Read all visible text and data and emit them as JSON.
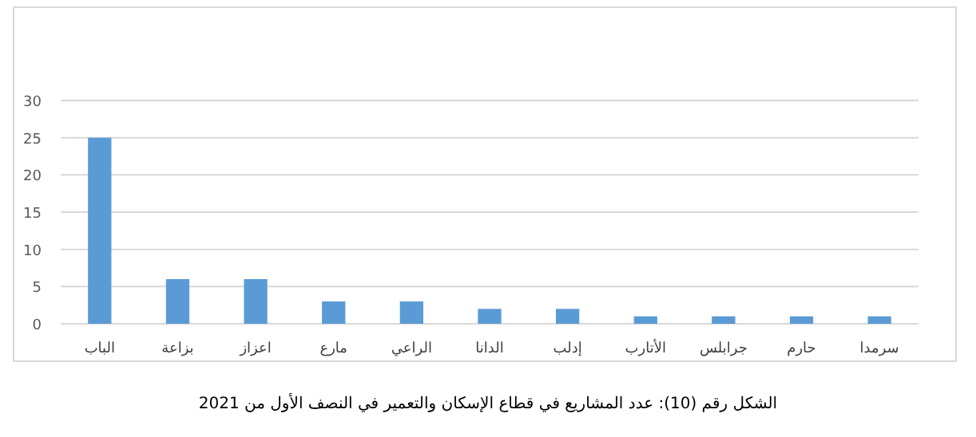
{
  "chart_data": {
    "type": "bar",
    "categories": [
      "الباب",
      "بزاعة",
      "اعزاز",
      "مارع",
      "الراعي",
      "الدانا",
      "إدلب",
      "الأتارب",
      "جرابلس",
      "حارم",
      "سرمدا"
    ],
    "values": [
      25,
      6,
      6,
      3,
      3,
      2,
      2,
      1,
      1,
      1,
      1
    ],
    "color": "#5b9bd5",
    "ylim": [
      0,
      30
    ],
    "yticks": [
      0,
      5,
      10,
      15,
      20,
      25,
      30
    ],
    "grid": "y",
    "annotations": [
      "الشكل رقم (10): عدد المشاريع في قطاع الإسكان والتعمير في النصف الأول من 2021"
    ]
  }
}
